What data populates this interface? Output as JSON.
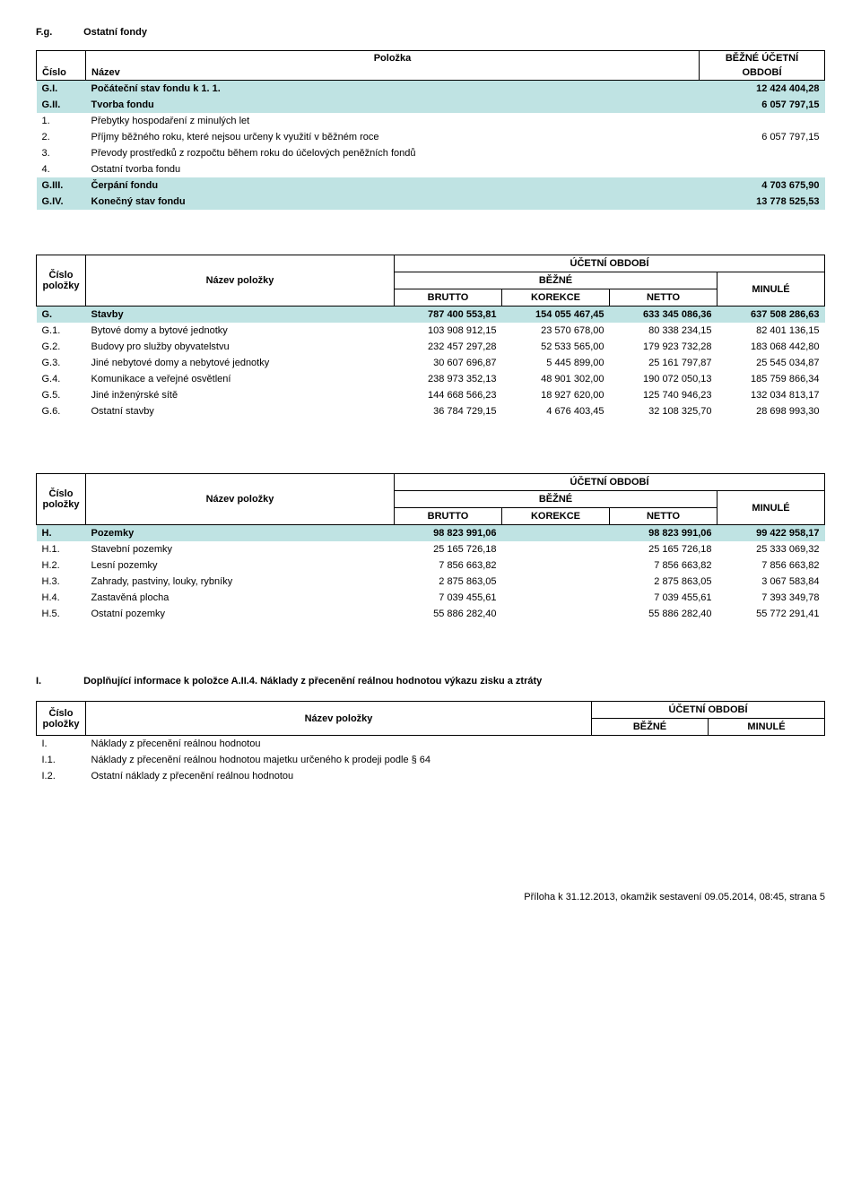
{
  "section": {
    "code": "F.g.",
    "title": "Ostatní fondy"
  },
  "fondy": {
    "header": {
      "cislo": "Číslo",
      "nazev": "Název",
      "polozka": "Položka",
      "obdobi_l1": "BĚŽNÉ ÚČETNÍ",
      "obdobi_l2": "OBDOBÍ"
    },
    "rows": [
      {
        "code": "G.I.",
        "name": "Počáteční stav fondu k 1. 1.",
        "val": "12 424 404,28",
        "hl": true
      },
      {
        "code": "G.II.",
        "name": "Tvorba fondu",
        "val": "6 057 797,15",
        "hl": true
      },
      {
        "code": "1.",
        "name": "Přebytky hospodaření z minulých let",
        "val": ""
      },
      {
        "code": "2.",
        "name": "Příjmy běžného roku, které nejsou určeny k využití v běžném roce",
        "val": "6 057 797,15"
      },
      {
        "code": "3.",
        "name": "Převody prostředků z rozpočtu během roku do účelových peněžních fondů",
        "val": ""
      },
      {
        "code": "4.",
        "name": "Ostatní tvorba fondu",
        "val": ""
      },
      {
        "code": "G.III.",
        "name": "Čerpání fondu",
        "val": "4 703 675,90",
        "hl": true
      },
      {
        "code": "G.IV.",
        "name": "Konečný stav fondu",
        "val": "13 778 525,53",
        "hl": true
      }
    ]
  },
  "stavby_header": {
    "cislo_l1": "Číslo",
    "cislo_l2": "položky",
    "nazev": "Název položky",
    "obdobi": "ÚČETNÍ OBDOBÍ",
    "bezne": "BĚŽNÉ",
    "brutto": "BRUTTO",
    "korekce": "KOREKCE",
    "netto": "NETTO",
    "minule": "MINULÉ"
  },
  "stavby": {
    "rows": [
      {
        "code": "G.",
        "name": "Stavby",
        "v1": "787 400 553,81",
        "v2": "154 055 467,45",
        "v3": "633 345 086,36",
        "v4": "637 508 286,63",
        "hl": true
      },
      {
        "code": "G.1.",
        "name": "Bytové domy a bytové jednotky",
        "v1": "103 908 912,15",
        "v2": "23 570 678,00",
        "v3": "80 338 234,15",
        "v4": "82 401 136,15"
      },
      {
        "code": "G.2.",
        "name": "Budovy pro služby obyvatelstvu",
        "v1": "232 457 297,28",
        "v2": "52 533 565,00",
        "v3": "179 923 732,28",
        "v4": "183 068 442,80"
      },
      {
        "code": "G.3.",
        "name": "Jiné nebytové domy a nebytové jednotky",
        "v1": "30 607 696,87",
        "v2": "5 445 899,00",
        "v3": "25 161 797,87",
        "v4": "25 545 034,87"
      },
      {
        "code": "G.4.",
        "name": "Komunikace a veřejné osvětlení",
        "v1": "238 973 352,13",
        "v2": "48 901 302,00",
        "v3": "190 072 050,13",
        "v4": "185 759 866,34"
      },
      {
        "code": "G.5.",
        "name": "Jiné inženýrské sítě",
        "v1": "144 668 566,23",
        "v2": "18 927 620,00",
        "v3": "125 740 946,23",
        "v4": "132 034 813,17"
      },
      {
        "code": "G.6.",
        "name": "Ostatní stavby",
        "v1": "36 784 729,15",
        "v2": "4 676 403,45",
        "v3": "32 108 325,70",
        "v4": "28 698 993,30"
      }
    ]
  },
  "pozemky": {
    "rows": [
      {
        "code": "H.",
        "name": "Pozemky",
        "v1": "98 823 991,06",
        "v2": "",
        "v3": "98 823 991,06",
        "v4": "99 422 958,17",
        "hl": true
      },
      {
        "code": "H.1.",
        "name": "Stavební pozemky",
        "v1": "25 165 726,18",
        "v2": "",
        "v3": "25 165 726,18",
        "v4": "25 333 069,32"
      },
      {
        "code": "H.2.",
        "name": "Lesní pozemky",
        "v1": "7 856 663,82",
        "v2": "",
        "v3": "7 856 663,82",
        "v4": "7 856 663,82"
      },
      {
        "code": "H.3.",
        "name": "Zahrady, pastviny, louky, rybníky",
        "v1": "2 875 863,05",
        "v2": "",
        "v3": "2 875 863,05",
        "v4": "3 067 583,84"
      },
      {
        "code": "H.4.",
        "name": "Zastavěná plocha",
        "v1": "7 039 455,61",
        "v2": "",
        "v3": "7 039 455,61",
        "v4": "7 393 349,78"
      },
      {
        "code": "H.5.",
        "name": "Ostatní pozemky",
        "v1": "55 886 282,40",
        "v2": "",
        "v3": "55 886 282,40",
        "v4": "55 772 291,41"
      }
    ]
  },
  "sectionI": {
    "code": "I.",
    "title": "Doplňující informace k položce A.II.4. Náklady z přecenění reálnou hodnotou výkazu zisku a ztráty",
    "header": {
      "obdobi": "ÚČETNÍ OBDOBÍ",
      "bezne": "BĚŽNÉ",
      "minule": "MINULÉ"
    },
    "rows": [
      {
        "code": "I.",
        "name": "Náklady z přecenění reálnou hodnotou"
      },
      {
        "code": "I.1.",
        "name": "Náklady z přecenění reálnou hodnotou majetku určeného k prodeji podle § 64"
      },
      {
        "code": "I.2.",
        "name": "Ostatní náklady z přecenění reálnou hodnotou"
      }
    ]
  },
  "footer": "Příloha k 31.12.2013, okamžik sestavení 09.05.2014, 08:45, strana 5"
}
